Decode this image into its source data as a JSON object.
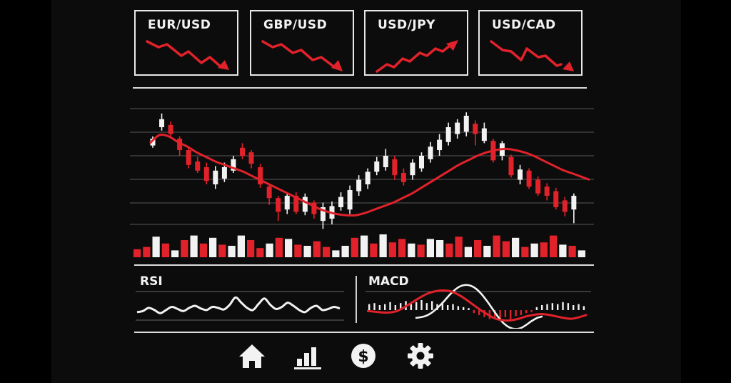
{
  "tickers": [
    {
      "symbol": "EUR/USD",
      "trend": "down"
    },
    {
      "symbol": "GBP/USD",
      "trend": "down"
    },
    {
      "symbol": "USD/JPY",
      "trend": "up"
    },
    {
      "symbol": "USD/CAD",
      "trend": "down"
    }
  ],
  "indicators": {
    "rsi_label": "RSI",
    "macd_label": "MACD"
  },
  "nav": [
    {
      "name": "home",
      "icon": "home-icon"
    },
    {
      "name": "charts",
      "icon": "bar-chart-icon"
    },
    {
      "name": "trade",
      "icon": "dollar-icon"
    },
    {
      "name": "settings",
      "icon": "gear-icon"
    }
  ],
  "colors": {
    "bull": "#f2f2f2",
    "bear": "#e1222a",
    "accent": "#e1222a",
    "background": "#0c0c0c"
  },
  "chart_data": {
    "type": "candlestick",
    "candles": [
      {
        "o": 64,
        "c": 70,
        "h": 72,
        "l": 62
      },
      {
        "o": 80,
        "c": 87,
        "h": 92,
        "l": 77
      },
      {
        "o": 82,
        "c": 74,
        "h": 85,
        "l": 71
      },
      {
        "o": 70,
        "c": 60,
        "h": 72,
        "l": 55
      },
      {
        "o": 60,
        "c": 47,
        "h": 63,
        "l": 44
      },
      {
        "o": 50,
        "c": 42,
        "h": 54,
        "l": 40
      },
      {
        "o": 45,
        "c": 33,
        "h": 49,
        "l": 30
      },
      {
        "o": 30,
        "c": 42,
        "h": 46,
        "l": 26
      },
      {
        "o": 35,
        "c": 45,
        "h": 49,
        "l": 32
      },
      {
        "o": 42,
        "c": 52,
        "h": 55,
        "l": 40
      },
      {
        "o": 62,
        "c": 55,
        "h": 66,
        "l": 52
      },
      {
        "o": 58,
        "c": 48,
        "h": 60,
        "l": 44
      },
      {
        "o": 45,
        "c": 30,
        "h": 48,
        "l": 27
      },
      {
        "o": 28,
        "c": 18,
        "h": 31,
        "l": 12
      },
      {
        "o": 18,
        "c": 6,
        "h": 20,
        "l": -2
      },
      {
        "o": 8,
        "c": 20,
        "h": 22,
        "l": 4
      },
      {
        "o": 20,
        "c": 6,
        "h": 23,
        "l": 4
      },
      {
        "o": 6,
        "c": 19,
        "h": 22,
        "l": 3
      },
      {
        "o": 14,
        "c": 4,
        "h": 16,
        "l": 0
      },
      {
        "o": -2,
        "c": 10,
        "h": 14,
        "l": -9
      },
      {
        "o": 0,
        "c": 11,
        "h": 15,
        "l": -5
      },
      {
        "o": 10,
        "c": 19,
        "h": 23,
        "l": 7
      },
      {
        "o": 8,
        "c": 25,
        "h": 29,
        "l": 4
      },
      {
        "o": 24,
        "c": 34,
        "h": 38,
        "l": 20
      },
      {
        "o": 30,
        "c": 41,
        "h": 44,
        "l": 26
      },
      {
        "o": 41,
        "c": 50,
        "h": 54,
        "l": 38
      },
      {
        "o": 45,
        "c": 55,
        "h": 61,
        "l": 42
      },
      {
        "o": 52,
        "c": 38,
        "h": 55,
        "l": 34
      },
      {
        "o": 40,
        "c": 32,
        "h": 44,
        "l": 29
      },
      {
        "o": 38,
        "c": 49,
        "h": 52,
        "l": 34
      },
      {
        "o": 44,
        "c": 55,
        "h": 58,
        "l": 41
      },
      {
        "o": 52,
        "c": 63,
        "h": 67,
        "l": 49
      },
      {
        "o": 60,
        "c": 69,
        "h": 74,
        "l": 55
      },
      {
        "o": 67,
        "c": 80,
        "h": 84,
        "l": 64
      },
      {
        "o": 74,
        "c": 84,
        "h": 87,
        "l": 70
      },
      {
        "o": 76,
        "c": 90,
        "h": 93,
        "l": 72
      },
      {
        "o": 83,
        "c": 74,
        "h": 86,
        "l": 64
      },
      {
        "o": 68,
        "c": 79,
        "h": 84,
        "l": 66
      },
      {
        "o": 68,
        "c": 51,
        "h": 70,
        "l": 49
      },
      {
        "o": 55,
        "c": 66,
        "h": 68,
        "l": 51
      },
      {
        "o": 54,
        "c": 38,
        "h": 56,
        "l": 36
      },
      {
        "o": 34,
        "c": 43,
        "h": 47,
        "l": 30
      },
      {
        "o": 42,
        "c": 28,
        "h": 44,
        "l": 26
      },
      {
        "o": 34,
        "c": 22,
        "h": 37,
        "l": 20
      },
      {
        "o": 28,
        "c": 20,
        "h": 31,
        "l": 16
      },
      {
        "o": 24,
        "c": 10,
        "h": 27,
        "l": 8
      },
      {
        "o": 16,
        "c": 6,
        "h": 19,
        "l": 2
      },
      {
        "o": 8,
        "c": 20,
        "h": 22,
        "l": -4
      }
    ],
    "moving_average": [
      66,
      73,
      72,
      67,
      63,
      58,
      54,
      50,
      47,
      44,
      41,
      37,
      33,
      29,
      25,
      21,
      17,
      13,
      9,
      6,
      4,
      3,
      3,
      5,
      8,
      11,
      14,
      18,
      22,
      27,
      32,
      37,
      42,
      47,
      51,
      55,
      58,
      60,
      61,
      60,
      58,
      55,
      51,
      47,
      43,
      40,
      37,
      34
    ],
    "volume": [
      0.35,
      0.45,
      0.9,
      0.6,
      0.3,
      0.75,
      0.95,
      0.6,
      0.85,
      0.55,
      0.5,
      0.95,
      0.75,
      0.4,
      0.6,
      0.85,
      0.8,
      0.55,
      0.5,
      0.7,
      0.45,
      0.3,
      0.5,
      0.85,
      0.95,
      0.6,
      1.0,
      0.65,
      0.8,
      0.6,
      0.55,
      0.8,
      0.75,
      0.6,
      0.9,
      0.45,
      0.75,
      0.5,
      0.95,
      0.7,
      0.85,
      0.45,
      0.6,
      0.65,
      0.95,
      0.55,
      0.5,
      0.3
    ],
    "volume_bear": [
      true,
      true,
      false,
      true,
      false,
      true,
      false,
      true,
      false,
      true,
      false,
      false,
      true,
      true,
      false,
      true,
      false,
      true,
      false,
      true,
      true,
      false,
      false,
      true,
      false,
      true,
      false,
      true,
      true,
      false,
      true,
      false,
      false,
      true,
      true,
      false,
      true,
      false,
      true,
      true,
      false,
      true,
      false,
      true,
      true,
      false,
      true,
      false
    ],
    "rsi": [
      48,
      50,
      56,
      52,
      46,
      52,
      58,
      54,
      50,
      56,
      60,
      55,
      52,
      58,
      56,
      53,
      62,
      76,
      66,
      56,
      52,
      64,
      74,
      62,
      54,
      58,
      66,
      60,
      52,
      48,
      56,
      60,
      52,
      54,
      58,
      55
    ],
    "macd_line": [
      -20,
      -18,
      -14,
      -6,
      6,
      20,
      36,
      50,
      60,
      64,
      62,
      54,
      40,
      22,
      2,
      -18,
      -34,
      -44,
      -48,
      -46,
      -38,
      -28,
      -20,
      -16
    ],
    "signal_line": [
      -2,
      -4,
      -6,
      -6,
      -2,
      8,
      20,
      32,
      42,
      48,
      50,
      48,
      40,
      28,
      14,
      0,
      -12,
      -22,
      -26,
      -26,
      -22,
      -16,
      -12,
      -10,
      -12,
      -16,
      -20,
      -22,
      -18,
      -12
    ],
    "macd_hist": [
      0.6,
      0.7,
      0.5,
      0.6,
      0.8,
      0.5,
      0.7,
      0.9,
      0.6,
      0.8,
      1.0,
      0.7,
      0.9,
      0.6,
      0.8,
      0.5,
      0.6,
      0.4,
      0.3,
      0.2,
      -0.3,
      -0.5,
      -0.7,
      -0.9,
      -0.8,
      -1.0,
      -0.7,
      -0.9,
      -0.6,
      -0.5,
      -0.3,
      -0.2,
      0.3,
      0.5,
      0.6,
      0.7,
      0.6,
      0.8,
      0.7,
      0.5,
      0.6,
      0.4
    ]
  }
}
